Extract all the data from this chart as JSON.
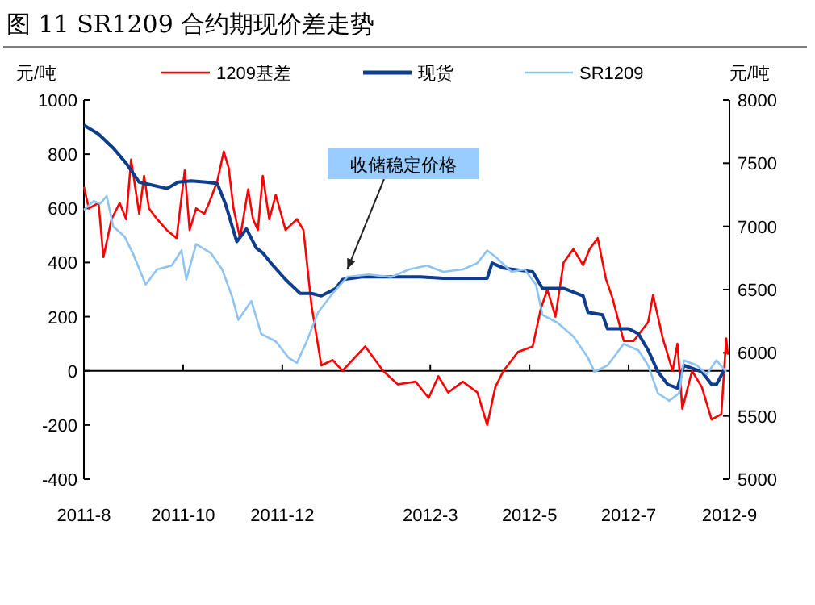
{
  "chart_data": {
    "type": "line",
    "title": "图 11 SR1209 合约期现价差走势",
    "ylabel": "元/吨",
    "y2label": "元/吨",
    "xlim": [
      "2011-08-01",
      "2012-09-01"
    ],
    "xticks": [
      {
        "value": "2011-08",
        "label": "2011-8"
      },
      {
        "value": "2011-10",
        "label": "2011-10"
      },
      {
        "value": "2011-12",
        "label": "2011-12"
      },
      {
        "value": "2012-03",
        "label": "2012-3"
      },
      {
        "value": "2012-05",
        "label": "2012-5"
      },
      {
        "value": "2012-07",
        "label": "2012-7"
      },
      {
        "value": "2012-09",
        "label": "2012-9"
      }
    ],
    "ylim": [
      -400,
      1000
    ],
    "yticks": [
      -400,
      -200,
      0,
      200,
      400,
      600,
      800,
      1000
    ],
    "y2lim": [
      5000,
      8000
    ],
    "y2ticks": [
      5000,
      5500,
      6000,
      6500,
      7000,
      7500,
      8000
    ],
    "grid": false,
    "ref_lines": [
      {
        "axis": "y",
        "value": 0,
        "color": "#000000"
      }
    ],
    "legend": "top",
    "line_style": "solid",
    "annotations": [
      {
        "text": "收储稳定价格",
        "x": "2012-01-10",
        "y": 375
      }
    ],
    "series": [
      {
        "name": "1209基差",
        "color": "#ff0000",
        "x": [
          "2011-08-01",
          "2011-08-04",
          "2011-08-10",
          "2011-08-13",
          "2011-08-18",
          "2011-08-23",
          "2011-08-27",
          "2011-08-30",
          "2011-09-04",
          "2011-09-07",
          "2011-09-10",
          "2011-09-15",
          "2011-09-21",
          "2011-09-27",
          "2011-10-02",
          "2011-10-05",
          "2011-10-09",
          "2011-10-14",
          "2011-10-17",
          "2011-10-22",
          "2011-10-26",
          "2011-10-29",
          "2011-11-01",
          "2011-11-05",
          "2011-11-10",
          "2011-11-13",
          "2011-11-16",
          "2011-11-19",
          "2011-11-23",
          "2011-11-27",
          "2011-12-03",
          "2011-12-10",
          "2011-12-14",
          "2011-12-19",
          "2011-12-25",
          "2012-01-01",
          "2012-01-07",
          "2012-01-21",
          "2012-02-01",
          "2012-02-10",
          "2012-02-21",
          "2012-02-29",
          "2012-03-06",
          "2012-03-12",
          "2012-03-21",
          "2012-03-30",
          "2012-04-05",
          "2012-04-10",
          "2012-04-15",
          "2012-04-24",
          "2012-05-03",
          "2012-05-08",
          "2012-05-12",
          "2012-05-17",
          "2012-05-22",
          "2012-05-28",
          "2012-06-03",
          "2012-06-07",
          "2012-06-12",
          "2012-06-17",
          "2012-06-21",
          "2012-06-28",
          "2012-07-04",
          "2012-07-13",
          "2012-07-16",
          "2012-07-22",
          "2012-07-28",
          "2012-07-31",
          "2012-08-03",
          "2012-08-09",
          "2012-08-15",
          "2012-08-21",
          "2012-08-27",
          "2012-08-30",
          "2012-08-31"
        ],
        "values": [
          680,
          600,
          620,
          420,
          560,
          620,
          560,
          780,
          580,
          720,
          600,
          560,
          520,
          490,
          740,
          520,
          600,
          580,
          620,
          700,
          810,
          750,
          600,
          490,
          670,
          560,
          520,
          720,
          560,
          650,
          520,
          560,
          520,
          240,
          20,
          40,
          0,
          90,
          0,
          -50,
          -40,
          -100,
          -20,
          -80,
          -40,
          -80,
          -200,
          -60,
          0,
          70,
          90,
          230,
          300,
          200,
          400,
          450,
          390,
          450,
          490,
          340,
          270,
          110,
          110,
          180,
          280,
          120,
          0,
          100,
          -140,
          0,
          -60,
          -180,
          -160,
          120,
          60
        ]
      },
      {
        "name": "现货",
        "color": "#0d3d8c",
        "axis": "y2",
        "x": [
          "2011-08-01",
          "2011-08-10",
          "2011-08-19",
          "2011-08-27",
          "2011-09-04",
          "2011-09-11",
          "2011-09-21",
          "2011-09-28",
          "2011-10-06",
          "2011-10-15",
          "2011-10-22",
          "2011-10-27",
          "2011-11-03",
          "2011-11-09",
          "2011-11-15",
          "2011-11-19",
          "2011-11-24",
          "2011-12-03",
          "2011-12-12",
          "2011-12-19",
          "2011-12-25",
          "2012-01-03",
          "2012-01-07",
          "2012-01-19",
          "2012-02-06",
          "2012-02-24",
          "2012-03-09",
          "2012-03-27",
          "2012-04-05",
          "2012-04-08",
          "2012-04-15",
          "2012-05-03",
          "2012-05-09",
          "2012-05-22",
          "2012-06-03",
          "2012-06-06",
          "2012-06-15",
          "2012-06-18",
          "2012-07-01",
          "2012-07-07",
          "2012-07-13",
          "2012-07-19",
          "2012-07-25",
          "2012-07-31",
          "2012-08-04",
          "2012-08-15",
          "2012-08-21",
          "2012-08-24",
          "2012-08-29"
        ],
        "values": [
          7800,
          7730,
          7620,
          7500,
          7350,
          7330,
          7300,
          7350,
          7360,
          7350,
          7340,
          7180,
          6880,
          6980,
          6830,
          6790,
          6710,
          6580,
          6470,
          6470,
          6450,
          6510,
          6580,
          6600,
          6600,
          6600,
          6590,
          6590,
          6590,
          6710,
          6670,
          6640,
          6510,
          6510,
          6450,
          6320,
          6300,
          6190,
          6190,
          6150,
          6020,
          5850,
          5750,
          5720,
          5900,
          5850,
          5750,
          5750,
          5870
        ]
      },
      {
        "name": "SR1209",
        "color": "#8fc3f0",
        "axis": "y2",
        "x": [
          "2011-08-01",
          "2011-08-07",
          "2011-08-11",
          "2011-08-15",
          "2011-08-19",
          "2011-08-26",
          "2011-08-31",
          "2011-09-08",
          "2011-09-15",
          "2011-09-24",
          "2011-09-30",
          "2011-10-03",
          "2011-10-09",
          "2011-10-18",
          "2011-10-25",
          "2011-10-31",
          "2011-11-04",
          "2011-11-12",
          "2011-11-18",
          "2011-11-27",
          "2011-12-05",
          "2011-12-10",
          "2011-12-16",
          "2011-12-23",
          "2012-01-01",
          "2012-01-10",
          "2012-01-23",
          "2012-02-06",
          "2012-02-17",
          "2012-02-28",
          "2012-03-09",
          "2012-03-21",
          "2012-03-30",
          "2012-04-05",
          "2012-04-11",
          "2012-04-20",
          "2012-04-28",
          "2012-05-05",
          "2012-05-09",
          "2012-05-18",
          "2012-05-28",
          "2012-06-06",
          "2012-06-10",
          "2012-06-18",
          "2012-06-28",
          "2012-07-07",
          "2012-07-13",
          "2012-07-19",
          "2012-07-26",
          "2012-08-01",
          "2012-08-04",
          "2012-08-12",
          "2012-08-18",
          "2012-08-24",
          "2012-08-30"
        ],
        "values": [
          7130,
          7200,
          7180,
          7240,
          7000,
          6920,
          6790,
          6540,
          6660,
          6690,
          6810,
          6580,
          6860,
          6790,
          6660,
          6450,
          6260,
          6410,
          6150,
          6090,
          5960,
          5920,
          6090,
          6320,
          6470,
          6600,
          6620,
          6600,
          6660,
          6690,
          6640,
          6660,
          6710,
          6810,
          6750,
          6640,
          6660,
          6540,
          6300,
          6240,
          6130,
          5960,
          5850,
          5900,
          6070,
          6020,
          5900,
          5680,
          5620,
          5680,
          5940,
          5900,
          5830,
          5940,
          5850
        ]
      }
    ]
  }
}
